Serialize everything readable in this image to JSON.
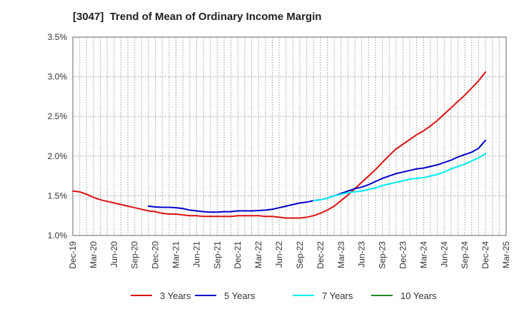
{
  "chart_data": {
    "type": "line",
    "title": "[3047]  Trend of Mean of Ordinary Income Margin",
    "xlabel": "",
    "ylabel": "",
    "x_ticks": [
      "Dec-19",
      "Mar-20",
      "Jun-20",
      "Sep-20",
      "Dec-20",
      "Mar-21",
      "Jun-21",
      "Sep-21",
      "Dec-21",
      "Mar-22",
      "Jun-22",
      "Sep-22",
      "Dec-22",
      "Mar-23",
      "Jun-23",
      "Sep-23",
      "Dec-23",
      "Mar-24",
      "Jun-24",
      "Sep-24",
      "Dec-24",
      "Mar-25"
    ],
    "y_ticks": [
      "1.0%",
      "1.5%",
      "2.0%",
      "2.5%",
      "3.0%",
      "3.5%"
    ],
    "ylim": [
      1.0,
      3.5
    ],
    "grid": true,
    "legend_position": "bottom",
    "series": [
      {
        "name": "3 Years",
        "color": "#dd1111",
        "points": [
          [
            "Dec-19",
            1.56
          ],
          [
            "Jan-20",
            1.55
          ],
          [
            "Feb-20",
            1.52
          ],
          [
            "Mar-20",
            1.48
          ],
          [
            "Apr-20",
            1.45
          ],
          [
            "May-20",
            1.43
          ],
          [
            "Jun-20",
            1.41
          ],
          [
            "Jul-20",
            1.39
          ],
          [
            "Aug-20",
            1.37
          ],
          [
            "Sep-20",
            1.35
          ],
          [
            "Oct-20",
            1.33
          ],
          [
            "Nov-20",
            1.31
          ],
          [
            "Dec-20",
            1.3
          ],
          [
            "Jan-21",
            1.28
          ],
          [
            "Feb-21",
            1.27
          ],
          [
            "Mar-21",
            1.27
          ],
          [
            "Apr-21",
            1.26
          ],
          [
            "May-21",
            1.25
          ],
          [
            "Jun-21",
            1.25
          ],
          [
            "Jul-21",
            1.24
          ],
          [
            "Aug-21",
            1.24
          ],
          [
            "Sep-21",
            1.24
          ],
          [
            "Oct-21",
            1.24
          ],
          [
            "Nov-21",
            1.24
          ],
          [
            "Dec-21",
            1.25
          ],
          [
            "Jan-22",
            1.25
          ],
          [
            "Feb-22",
            1.25
          ],
          [
            "Mar-22",
            1.25
          ],
          [
            "Apr-22",
            1.24
          ],
          [
            "May-22",
            1.24
          ],
          [
            "Jun-22",
            1.23
          ],
          [
            "Jul-22",
            1.22
          ],
          [
            "Aug-22",
            1.22
          ],
          [
            "Sep-22",
            1.22
          ],
          [
            "Oct-22",
            1.23
          ],
          [
            "Nov-22",
            1.25
          ],
          [
            "Dec-22",
            1.28
          ],
          [
            "Jan-23",
            1.32
          ],
          [
            "Feb-23",
            1.37
          ],
          [
            "Mar-23",
            1.44
          ],
          [
            "Apr-23",
            1.51
          ],
          [
            "May-23",
            1.59
          ],
          [
            "Jun-23",
            1.67
          ],
          [
            "Jul-23",
            1.75
          ],
          [
            "Aug-23",
            1.83
          ],
          [
            "Sep-23",
            1.92
          ],
          [
            "Oct-23",
            2.01
          ],
          [
            "Nov-23",
            2.09
          ],
          [
            "Dec-23",
            2.15
          ],
          [
            "Jan-24",
            2.21
          ],
          [
            "Feb-24",
            2.27
          ],
          [
            "Mar-24",
            2.32
          ],
          [
            "Apr-24",
            2.38
          ],
          [
            "May-24",
            2.45
          ],
          [
            "Jun-24",
            2.53
          ],
          [
            "Jul-24",
            2.61
          ],
          [
            "Aug-24",
            2.69
          ],
          [
            "Sep-24",
            2.77
          ],
          [
            "Oct-24",
            2.86
          ],
          [
            "Nov-24",
            2.95
          ],
          [
            "Dec-24",
            3.06
          ]
        ]
      },
      {
        "name": "5 Years",
        "color": "#0000cc",
        "points": [
          [
            "Nov-20",
            1.37
          ],
          [
            "Dec-20",
            1.36
          ],
          [
            "Jan-21",
            1.355
          ],
          [
            "Feb-21",
            1.355
          ],
          [
            "Mar-21",
            1.35
          ],
          [
            "Apr-21",
            1.34
          ],
          [
            "May-21",
            1.32
          ],
          [
            "Jun-21",
            1.31
          ],
          [
            "Jul-21",
            1.3
          ],
          [
            "Aug-21",
            1.295
          ],
          [
            "Sep-21",
            1.295
          ],
          [
            "Oct-21",
            1.3
          ],
          [
            "Nov-21",
            1.3
          ],
          [
            "Dec-21",
            1.31
          ],
          [
            "Jan-22",
            1.31
          ],
          [
            "Feb-22",
            1.31
          ],
          [
            "Mar-22",
            1.315
          ],
          [
            "Apr-22",
            1.32
          ],
          [
            "May-22",
            1.33
          ],
          [
            "Jun-22",
            1.35
          ],
          [
            "Jul-22",
            1.37
          ],
          [
            "Aug-22",
            1.39
          ],
          [
            "Sep-22",
            1.41
          ],
          [
            "Oct-22",
            1.42
          ],
          [
            "Nov-22",
            1.44
          ],
          [
            "Dec-22",
            1.45
          ],
          [
            "Jan-23",
            1.47
          ],
          [
            "Feb-23",
            1.5
          ],
          [
            "Mar-23",
            1.53
          ],
          [
            "Apr-23",
            1.56
          ],
          [
            "May-23",
            1.59
          ],
          [
            "Jun-23",
            1.61
          ],
          [
            "Jul-23",
            1.64
          ],
          [
            "Aug-23",
            1.68
          ],
          [
            "Sep-23",
            1.72
          ],
          [
            "Oct-23",
            1.75
          ],
          [
            "Nov-23",
            1.78
          ],
          [
            "Dec-23",
            1.8
          ],
          [
            "Jan-24",
            1.82
          ],
          [
            "Feb-24",
            1.84
          ],
          [
            "Mar-24",
            1.85
          ],
          [
            "Apr-24",
            1.87
          ],
          [
            "May-24",
            1.89
          ],
          [
            "Jun-24",
            1.92
          ],
          [
            "Jul-24",
            1.95
          ],
          [
            "Aug-24",
            1.99
          ],
          [
            "Sep-24",
            2.02
          ],
          [
            "Oct-24",
            2.05
          ],
          [
            "Nov-24",
            2.1
          ],
          [
            "Dec-24",
            2.2
          ]
        ]
      },
      {
        "name": "7 Years",
        "color": "#00eeee",
        "points": [
          [
            "Nov-22",
            1.44
          ],
          [
            "Dec-22",
            1.45
          ],
          [
            "Jan-23",
            1.47
          ],
          [
            "Feb-23",
            1.5
          ],
          [
            "Mar-23",
            1.52
          ],
          [
            "Apr-23",
            1.54
          ],
          [
            "May-23",
            1.55
          ],
          [
            "Jun-23",
            1.56
          ],
          [
            "Jul-23",
            1.58
          ],
          [
            "Aug-23",
            1.6
          ],
          [
            "Sep-23",
            1.63
          ],
          [
            "Oct-23",
            1.65
          ],
          [
            "Nov-23",
            1.67
          ],
          [
            "Dec-23",
            1.69
          ],
          [
            "Jan-24",
            1.71
          ],
          [
            "Feb-24",
            1.72
          ],
          [
            "Mar-24",
            1.73
          ],
          [
            "Apr-24",
            1.75
          ],
          [
            "May-24",
            1.77
          ],
          [
            "Jun-24",
            1.8
          ],
          [
            "Jul-24",
            1.84
          ],
          [
            "Aug-24",
            1.87
          ],
          [
            "Sep-24",
            1.9
          ],
          [
            "Oct-24",
            1.94
          ],
          [
            "Nov-24",
            1.98
          ],
          [
            "Dec-24",
            2.03
          ]
        ]
      },
      {
        "name": "10 Years",
        "color": "#228822",
        "points": []
      }
    ]
  }
}
